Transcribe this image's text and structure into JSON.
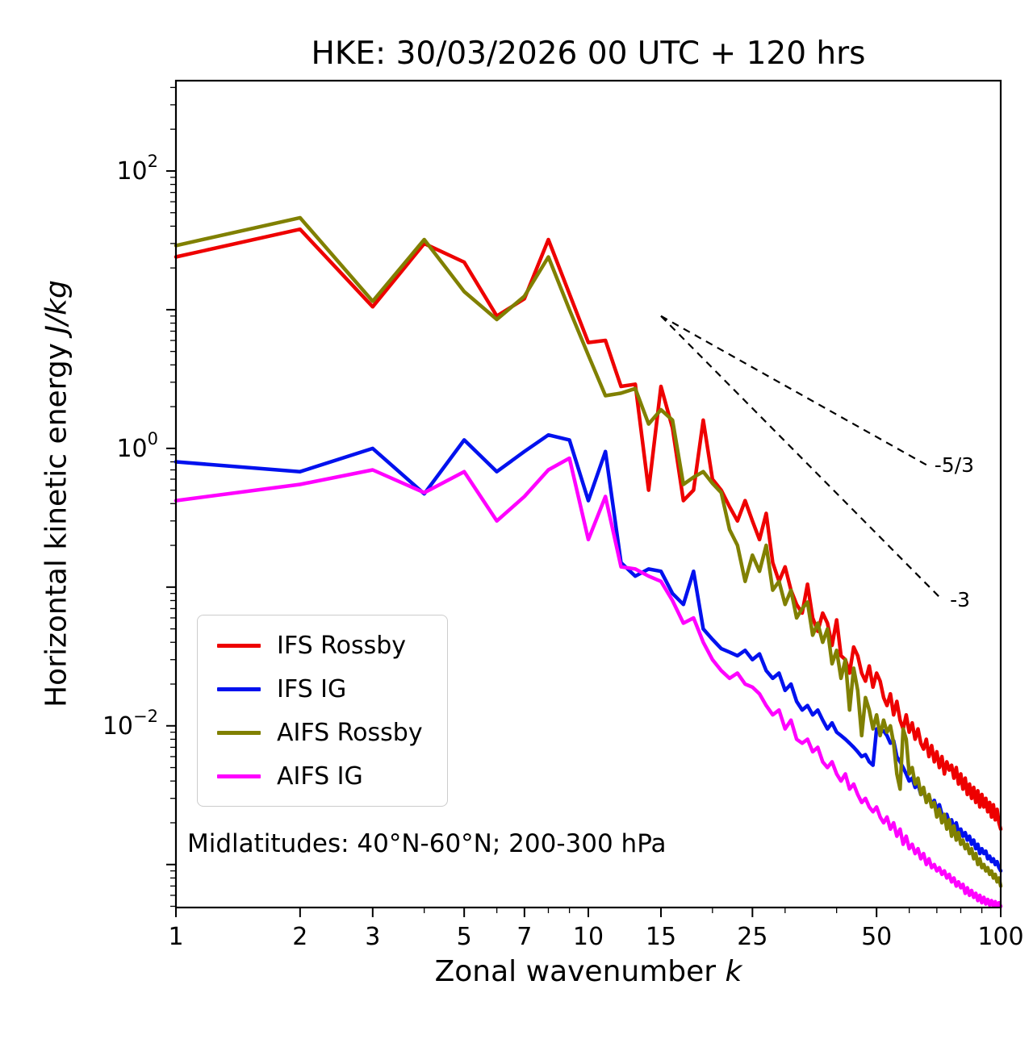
{
  "chart_data": {
    "type": "line",
    "title": "HKE: 30/03/2026 00 UTC + 120 hrs",
    "xlabel_prefix": "Zonal wavenumber ",
    "xlabel_math": "k",
    "ylabel_prefix": "Horizontal kinetic energy ",
    "ylabel_math": "J/kg",
    "annotation": "Midlatitudes: 40°N-60°N; 200-300 hPa",
    "xscale": "log",
    "yscale": "log",
    "xlim": [
      1,
      100
    ],
    "ylim": [
      0.00049,
      447.7
    ],
    "grid": false,
    "legend_position": "lower-left",
    "x_ticks": [
      1,
      2,
      3,
      5,
      7,
      10,
      15,
      25,
      50,
      100
    ],
    "x_ticklabels": [
      "1",
      "2",
      "3",
      "5",
      "7",
      "10",
      "15",
      "25",
      "50",
      "100"
    ],
    "x_minor_ticks": [
      4,
      6,
      8,
      9,
      20,
      30,
      40,
      60,
      70,
      80,
      90
    ],
    "y_ticks": [
      {
        "value": 100,
        "label": "10^2"
      },
      {
        "value": 1,
        "label": "10^0"
      },
      {
        "value": 0.01,
        "label": "10^-2"
      }
    ],
    "x": [
      1,
      2,
      3,
      4,
      5,
      6,
      7,
      8,
      9,
      10,
      11,
      12,
      13,
      14,
      15,
      16,
      17,
      18,
      19,
      20,
      21,
      22,
      23,
      24,
      25,
      26,
      27,
      28,
      29,
      30,
      31,
      32,
      33,
      34,
      35,
      36,
      37,
      38,
      39,
      40,
      41,
      42,
      43,
      44,
      45,
      46,
      47,
      48,
      49,
      50,
      51,
      52,
      53,
      54,
      55,
      56,
      57,
      58,
      59,
      60,
      61,
      62,
      63,
      64,
      65,
      66,
      67,
      68,
      69,
      70,
      71,
      72,
      73,
      74,
      75,
      76,
      77,
      78,
      79,
      80,
      81,
      82,
      83,
      84,
      85,
      86,
      87,
      88,
      89,
      90,
      91,
      92,
      93,
      94,
      95,
      96,
      97,
      98,
      99,
      100
    ],
    "series": [
      {
        "name": "IFS Rossby",
        "color": "#ee0000",
        "values": [
          24,
          38,
          10.5,
          30,
          22,
          9,
          12,
          32,
          13,
          5.8,
          6.0,
          2.8,
          2.9,
          0.5,
          2.8,
          1.4,
          0.42,
          0.5,
          1.6,
          0.6,
          0.5,
          0.38,
          0.3,
          0.42,
          0.3,
          0.22,
          0.34,
          0.15,
          0.11,
          0.14,
          0.095,
          0.075,
          0.065,
          0.105,
          0.06,
          0.048,
          0.065,
          0.055,
          0.038,
          0.058,
          0.032,
          0.03,
          0.024,
          0.037,
          0.032,
          0.024,
          0.021,
          0.027,
          0.019,
          0.024,
          0.021,
          0.016,
          0.014,
          0.017,
          0.012,
          0.015,
          0.011,
          0.0095,
          0.012,
          0.009,
          0.0105,
          0.008,
          0.0095,
          0.0075,
          0.0068,
          0.008,
          0.006,
          0.0072,
          0.0055,
          0.0065,
          0.005,
          0.006,
          0.0045,
          0.0055,
          0.0048,
          0.0052,
          0.0042,
          0.005,
          0.0038,
          0.0045,
          0.0035,
          0.0042,
          0.0032,
          0.0038,
          0.003,
          0.0036,
          0.0028,
          0.0034,
          0.0026,
          0.0032,
          0.0026,
          0.003,
          0.0024,
          0.0028,
          0.0022,
          0.0027,
          0.0021,
          0.0025,
          0.002,
          0.0018
        ]
      },
      {
        "name": "IFS IG",
        "color": "#0011ee",
        "values": [
          0.8,
          0.68,
          1.0,
          0.47,
          1.15,
          0.68,
          0.95,
          1.25,
          1.15,
          0.42,
          0.95,
          0.15,
          0.12,
          0.135,
          0.13,
          0.09,
          0.075,
          0.13,
          0.05,
          0.042,
          0.036,
          0.034,
          0.032,
          0.035,
          0.03,
          0.033,
          0.025,
          0.022,
          0.024,
          0.018,
          0.02,
          0.015,
          0.013,
          0.014,
          0.012,
          0.013,
          0.011,
          0.0095,
          0.0105,
          0.009,
          0.0085,
          0.008,
          0.0075,
          0.007,
          0.0065,
          0.006,
          0.0062,
          0.0055,
          0.0052,
          0.0095,
          0.009,
          0.0092,
          0.0085,
          0.0075,
          0.0078,
          0.006,
          0.0055,
          0.005,
          0.0045,
          0.004,
          0.0042,
          0.0036,
          0.0038,
          0.0032,
          0.0034,
          0.0029,
          0.0031,
          0.0027,
          0.0029,
          0.0025,
          0.0027,
          0.0023,
          0.0021,
          0.0023,
          0.002,
          0.0021,
          0.0018,
          0.002,
          0.0017,
          0.0018,
          0.0016,
          0.0017,
          0.0015,
          0.0016,
          0.0014,
          0.0015,
          0.0013,
          0.0014,
          0.0012,
          0.0013,
          0.0012,
          0.00125,
          0.0011,
          0.00115,
          0.00105,
          0.0011,
          0.001,
          0.00105,
          0.00095,
          0.0009
        ]
      },
      {
        "name": "AIFS Rossby",
        "color": "#808000",
        "values": [
          29,
          46,
          11.5,
          32,
          13.5,
          8.5,
          12.5,
          24,
          10,
          4.7,
          2.4,
          2.5,
          2.7,
          1.5,
          1.9,
          1.6,
          0.55,
          0.62,
          0.68,
          0.56,
          0.48,
          0.26,
          0.2,
          0.11,
          0.17,
          0.13,
          0.2,
          0.095,
          0.11,
          0.075,
          0.095,
          0.06,
          0.07,
          0.078,
          0.045,
          0.055,
          0.04,
          0.05,
          0.028,
          0.035,
          0.022,
          0.03,
          0.013,
          0.026,
          0.018,
          0.0085,
          0.016,
          0.013,
          0.0095,
          0.012,
          0.0085,
          0.011,
          0.009,
          0.01,
          0.0075,
          0.0045,
          0.0035,
          0.0095,
          0.008,
          0.0045,
          0.005,
          0.0038,
          0.0042,
          0.0032,
          0.0036,
          0.0028,
          0.0032,
          0.0026,
          0.0028,
          0.0022,
          0.0025,
          0.002,
          0.0023,
          0.0018,
          0.0021,
          0.0016,
          0.0019,
          0.0015,
          0.0017,
          0.0014,
          0.0015,
          0.0013,
          0.0014,
          0.0012,
          0.0013,
          0.0011,
          0.0012,
          0.001,
          0.0011,
          0.00095,
          0.001,
          0.0009,
          0.00095,
          0.00085,
          0.0009,
          0.0008,
          0.00085,
          0.00075,
          0.0008,
          0.0007
        ]
      },
      {
        "name": "AIFS IG",
        "color": "#ff00ff",
        "values": [
          0.42,
          0.55,
          0.7,
          0.48,
          0.68,
          0.3,
          0.45,
          0.7,
          0.85,
          0.22,
          0.45,
          0.14,
          0.135,
          0.12,
          0.11,
          0.08,
          0.055,
          0.06,
          0.04,
          0.03,
          0.025,
          0.022,
          0.024,
          0.02,
          0.019,
          0.017,
          0.014,
          0.012,
          0.013,
          0.0095,
          0.011,
          0.008,
          0.0075,
          0.008,
          0.0065,
          0.007,
          0.0055,
          0.005,
          0.0055,
          0.0045,
          0.004,
          0.0045,
          0.0035,
          0.0038,
          0.0032,
          0.0028,
          0.003,
          0.0026,
          0.0024,
          0.0026,
          0.0022,
          0.002,
          0.0022,
          0.0018,
          0.002,
          0.0016,
          0.0018,
          0.0014,
          0.0016,
          0.0013,
          0.0014,
          0.0012,
          0.0013,
          0.0011,
          0.0012,
          0.001,
          0.0011,
          0.00095,
          0.001,
          0.0009,
          0.00095,
          0.00085,
          0.0009,
          0.0008,
          0.00085,
          0.00075,
          0.0008,
          0.0007,
          0.00075,
          0.00068,
          0.00072,
          0.00062,
          0.00068,
          0.0006,
          0.00065,
          0.00058,
          0.00062,
          0.00055,
          0.0006,
          0.00053,
          0.00058,
          0.00052,
          0.00056,
          0.00051,
          0.00055,
          0.0005,
          0.00054,
          0.0005,
          0.00053,
          0.0005
        ]
      }
    ],
    "ref_lines": [
      {
        "label": "-5/3",
        "x1": 15,
        "y1": 9,
        "x2": 66,
        "slope": -1.66667
      },
      {
        "label": "-3",
        "x1": 15,
        "y1": 9,
        "x2": 72,
        "slope": -3
      }
    ]
  }
}
